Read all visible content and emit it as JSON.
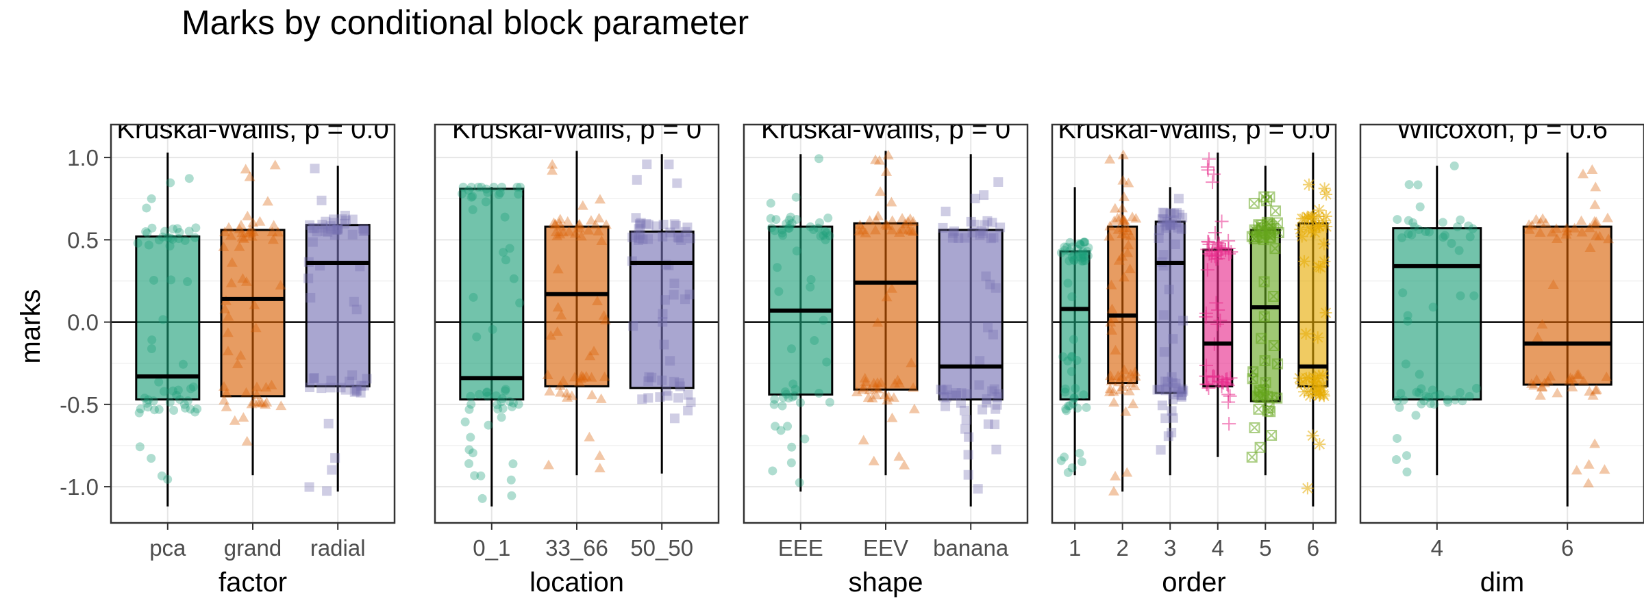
{
  "chart_data": {
    "type": "box",
    "title": "Marks by conditional block parameter",
    "ylabel": "marks",
    "ylim": [
      -1.22,
      1.2
    ],
    "y_ticks": [
      1.0,
      0.5,
      0.0,
      -0.5,
      -1.0
    ],
    "y_tick_labels": [
      "1.0",
      "0.5",
      "0.0",
      "-0.5",
      "-1.0"
    ],
    "reference_line_y": 0,
    "grid": true,
    "palette": [
      "#1b9e77",
      "#d95f02",
      "#7570b3",
      "#e7298a",
      "#66a61e",
      "#e6ab02"
    ],
    "panels": [
      {
        "xlabel": "factor",
        "test_label": "Kruskal-Wallis, p = 0.0",
        "groups": [
          {
            "label": "pca",
            "median": -0.33,
            "q1": -0.47,
            "q3": 0.52,
            "whisker_low": -1.12,
            "whisker_high": 1.03
          },
          {
            "label": "grand",
            "median": 0.14,
            "q1": -0.45,
            "q3": 0.56,
            "whisker_low": -0.93,
            "whisker_high": 1.03
          },
          {
            "label": "radial",
            "median": 0.36,
            "q1": -0.39,
            "q3": 0.59,
            "whisker_low": -1.03,
            "whisker_high": 0.95
          }
        ]
      },
      {
        "xlabel": "location",
        "test_label": "Kruskal-Wallis, p = 0",
        "groups": [
          {
            "label": "0_1",
            "median": -0.34,
            "q1": -0.47,
            "q3": 0.81,
            "whisker_low": -1.12,
            "whisker_high": 0.82
          },
          {
            "label": "33_66",
            "median": 0.17,
            "q1": -0.39,
            "q3": 0.58,
            "whisker_low": -0.93,
            "whisker_high": 1.04
          },
          {
            "label": "50_50",
            "median": 0.36,
            "q1": -0.4,
            "q3": 0.55,
            "whisker_low": -0.92,
            "whisker_high": 1.02
          }
        ]
      },
      {
        "xlabel": "shape",
        "test_label": "Kruskal-Wallis, p = 0",
        "groups": [
          {
            "label": "EEE",
            "median": 0.07,
            "q1": -0.44,
            "q3": 0.58,
            "whisker_low": -1.03,
            "whisker_high": 1.02
          },
          {
            "label": "EEV",
            "median": 0.24,
            "q1": -0.41,
            "q3": 0.6,
            "whisker_low": -0.93,
            "whisker_high": 1.04
          },
          {
            "label": "banana",
            "median": -0.27,
            "q1": -0.47,
            "q3": 0.56,
            "whisker_low": -1.12,
            "whisker_high": 1.02
          }
        ]
      },
      {
        "xlabel": "order",
        "test_label": "Kruskal-Wallis, p = 0.0",
        "groups": [
          {
            "label": "1",
            "median": 0.08,
            "q1": -0.47,
            "q3": 0.43,
            "whisker_low": -0.93,
            "whisker_high": 0.82
          },
          {
            "label": "2",
            "median": 0.04,
            "q1": -0.37,
            "q3": 0.58,
            "whisker_low": -1.03,
            "whisker_high": 1.02
          },
          {
            "label": "3",
            "median": 0.36,
            "q1": -0.43,
            "q3": 0.61,
            "whisker_low": -0.93,
            "whisker_high": 0.82
          },
          {
            "label": "4",
            "median": -0.13,
            "q1": -0.39,
            "q3": 0.44,
            "whisker_low": -0.82,
            "whisker_high": 1.03
          },
          {
            "label": "5",
            "median": 0.09,
            "q1": -0.48,
            "q3": 0.56,
            "whisker_low": -0.93,
            "whisker_high": 0.95
          },
          {
            "label": "6",
            "median": -0.27,
            "q1": -0.39,
            "q3": 0.6,
            "whisker_low": -1.12,
            "whisker_high": 1.03
          }
        ]
      },
      {
        "xlabel": "dim",
        "test_label": "Wilcoxon, p = 0.6",
        "groups": [
          {
            "label": "4",
            "median": 0.34,
            "q1": -0.47,
            "q3": 0.57,
            "whisker_low": -0.93,
            "whisker_high": 0.95
          },
          {
            "label": "6",
            "median": -0.13,
            "q1": -0.38,
            "q3": 0.58,
            "whisker_low": -1.12,
            "whisker_high": 1.03
          }
        ]
      }
    ]
  }
}
